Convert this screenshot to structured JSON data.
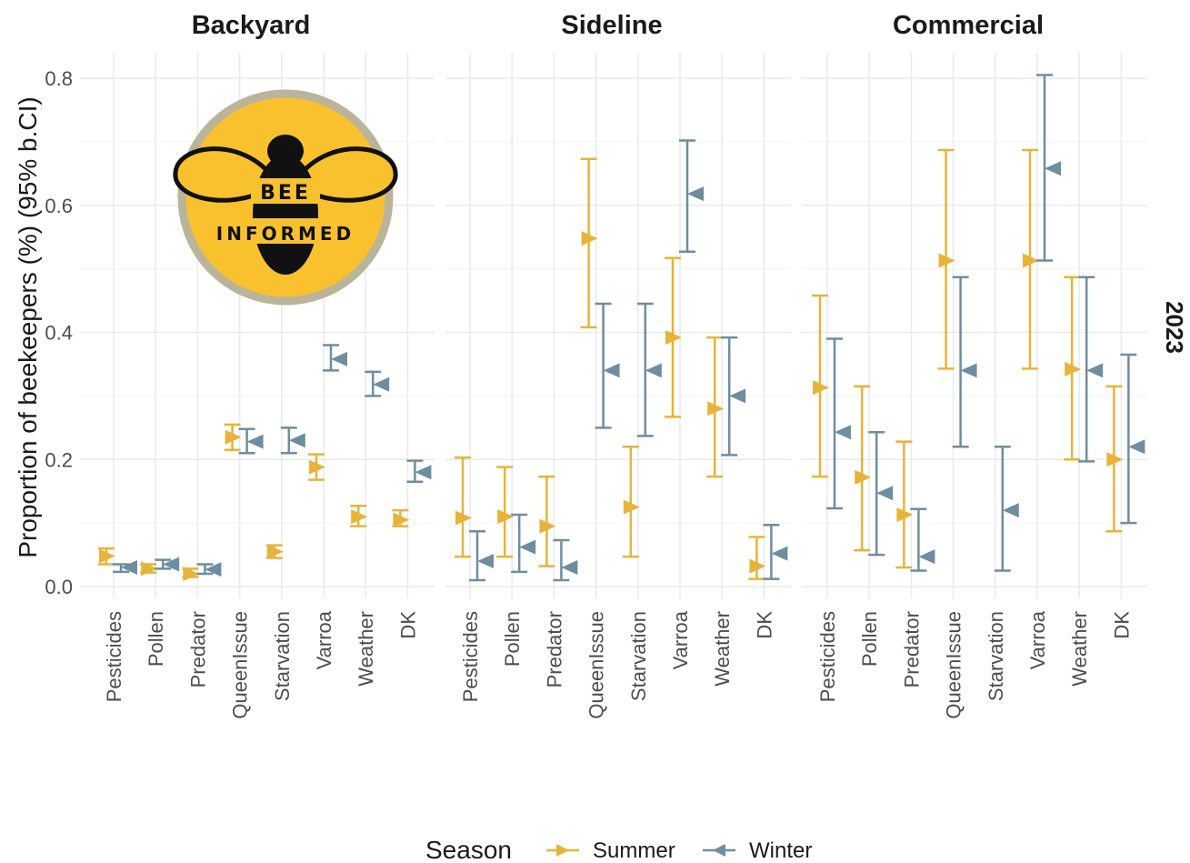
{
  "chart_data": {
    "type": "errorbar",
    "ylabel": "Proportion of beekeepers (%) (95% b.CI)",
    "ylim": [
      0,
      0.8
    ],
    "yticks": [
      "0.0",
      "0.2",
      "0.4",
      "0.6",
      "0.8"
    ],
    "ytick_values": [
      0,
      0.2,
      0.4,
      0.6,
      0.8
    ],
    "categories": [
      "Pesticides",
      "Pollen",
      "Predator",
      "QueenIssue",
      "Starvation",
      "Varroa",
      "Weather",
      "DK"
    ],
    "row_label": "2023",
    "grid": true,
    "legend": {
      "title": "Season",
      "position": "bottom",
      "entries": [
        "Summer",
        "Winter"
      ]
    },
    "colors": {
      "Summer": "#e8b33a",
      "Winter": "#6f8da0"
    },
    "panels": [
      {
        "title": "Backyard",
        "series": [
          {
            "name": "Summer",
            "values": [
              0.048,
              0.028,
              0.02,
              0.235,
              0.055,
              0.188,
              0.11,
              0.105
            ],
            "lower": [
              0.035,
              0.022,
              0.015,
              0.215,
              0.045,
              0.168,
              0.095,
              0.095
            ],
            "upper": [
              0.06,
              0.035,
              0.028,
              0.255,
              0.065,
              0.208,
              0.127,
              0.12
            ]
          },
          {
            "name": "Winter",
            "values": [
              0.03,
              0.035,
              0.027,
              0.228,
              0.23,
              0.358,
              0.318,
              0.18
            ],
            "lower": [
              0.023,
              0.028,
              0.02,
              0.21,
              0.21,
              0.34,
              0.3,
              0.165
            ],
            "upper": [
              0.035,
              0.042,
              0.035,
              0.248,
              0.25,
              0.38,
              0.338,
              0.198
            ]
          }
        ]
      },
      {
        "title": "Sideline",
        "series": [
          {
            "name": "Summer",
            "values": [
              0.108,
              0.11,
              0.095,
              0.548,
              0.125,
              0.392,
              0.28,
              0.032
            ],
            "lower": [
              0.047,
              0.047,
              0.032,
              0.408,
              0.047,
              0.267,
              0.173,
              0.012
            ],
            "upper": [
              0.203,
              0.188,
              0.173,
              0.673,
              0.22,
              0.517,
              0.392,
              0.078
            ]
          },
          {
            "name": "Winter",
            "values": [
              0.04,
              0.062,
              0.03,
              0.34,
              0.34,
              0.618,
              0.3,
              0.052
            ],
            "lower": [
              0.01,
              0.023,
              0.01,
              0.25,
              0.237,
              0.527,
              0.207,
              0.012
            ],
            "upper": [
              0.087,
              0.113,
              0.073,
              0.445,
              0.445,
              0.702,
              0.392,
              0.097
            ]
          }
        ]
      },
      {
        "title": "Commercial",
        "series": [
          {
            "name": "Summer",
            "values": [
              0.313,
              0.172,
              0.113,
              0.513,
              null,
              0.513,
              0.342,
              0.2
            ],
            "lower": [
              0.173,
              0.057,
              0.03,
              0.343,
              null,
              0.343,
              0.2,
              0.087
            ],
            "upper": [
              0.458,
              0.315,
              0.228,
              0.687,
              null,
              0.687,
              0.487,
              0.315
            ]
          },
          {
            "name": "Winter",
            "values": [
              0.243,
              0.147,
              0.047,
              0.34,
              0.12,
              0.658,
              0.34,
              0.22
            ],
            "lower": [
              0.123,
              0.05,
              0.025,
              0.22,
              0.025,
              0.513,
              0.197,
              0.1
            ],
            "upper": [
              0.39,
              0.243,
              0.122,
              0.487,
              0.22,
              0.805,
              0.487,
              0.365
            ]
          }
        ]
      }
    ]
  },
  "logo": {
    "name": "bee-informed-logo",
    "line1": "BEE",
    "line2": "INFORMED"
  }
}
